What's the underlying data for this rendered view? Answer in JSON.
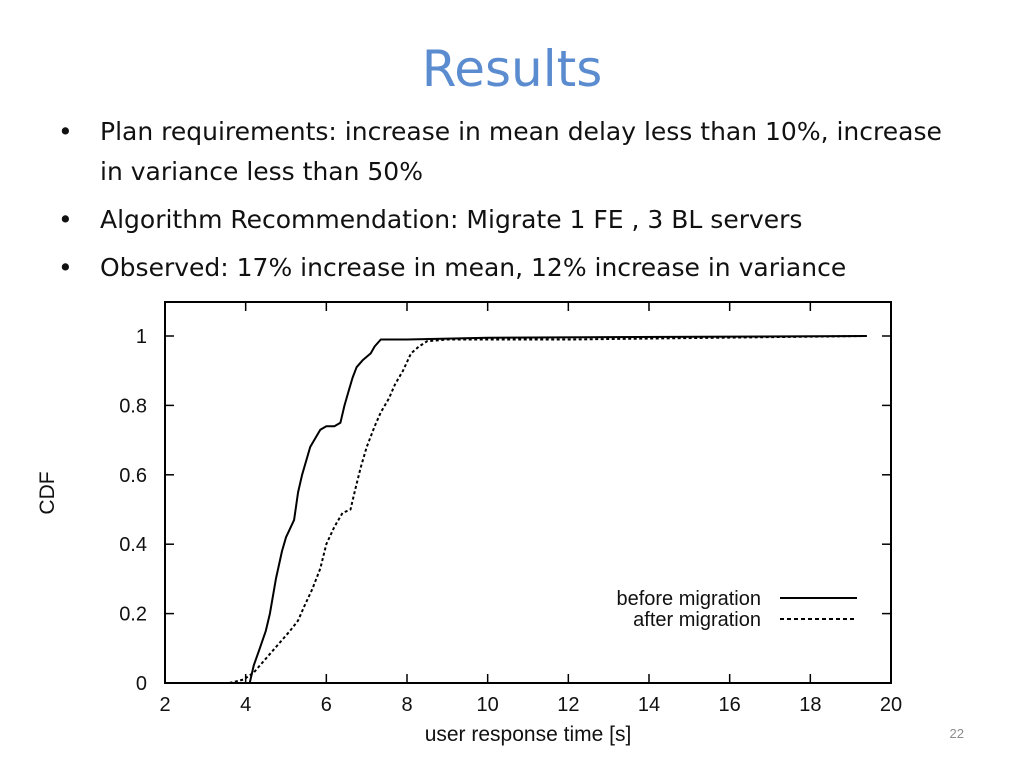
{
  "slide": {
    "title": "Results",
    "bullets": [
      "Plan requirements: increase in mean delay less than 10%, increase in variance less than 50%",
      "Algorithm Recommendation: Migrate 1 FE , 3 BL servers",
      "Observed: 17% increase in mean, 12% increase in variance"
    ],
    "slide_number": "22"
  },
  "chart_data": {
    "type": "line",
    "xlabel": "user response time [s]",
    "ylabel": "CDF",
    "xlim": [
      2,
      20
    ],
    "ylim": [
      0,
      1.05
    ],
    "x_ticks": [
      "2",
      "4",
      "6",
      "8",
      "10",
      "12",
      "14",
      "16",
      "18",
      "20"
    ],
    "y_ticks": [
      "0",
      "0.2",
      "0.4",
      "0.6",
      "0.8",
      "1"
    ],
    "legend_position": "bottom-right",
    "grid": false,
    "series": [
      {
        "name": "before migration",
        "style": "solid",
        "color": "#000000",
        "points": [
          [
            4.1,
            0.0
          ],
          [
            4.2,
            0.05
          ],
          [
            4.35,
            0.1
          ],
          [
            4.5,
            0.15
          ],
          [
            4.6,
            0.2
          ],
          [
            4.75,
            0.3
          ],
          [
            4.9,
            0.38
          ],
          [
            5.0,
            0.42
          ],
          [
            5.2,
            0.47
          ],
          [
            5.3,
            0.55
          ],
          [
            5.4,
            0.6
          ],
          [
            5.6,
            0.68
          ],
          [
            5.7,
            0.7
          ],
          [
            5.85,
            0.73
          ],
          [
            6.0,
            0.74
          ],
          [
            6.2,
            0.74
          ],
          [
            6.35,
            0.75
          ],
          [
            6.45,
            0.8
          ],
          [
            6.55,
            0.84
          ],
          [
            6.65,
            0.88
          ],
          [
            6.75,
            0.91
          ],
          [
            6.9,
            0.93
          ],
          [
            7.1,
            0.95
          ],
          [
            7.2,
            0.97
          ],
          [
            7.35,
            0.99
          ],
          [
            8.0,
            0.99
          ],
          [
            10.0,
            0.995
          ],
          [
            19.4,
            1.0
          ]
        ]
      },
      {
        "name": "after migration",
        "style": "dashed",
        "color": "#000000",
        "points": [
          [
            3.6,
            0.0
          ],
          [
            3.95,
            0.01
          ],
          [
            4.2,
            0.03
          ],
          [
            4.5,
            0.07
          ],
          [
            4.8,
            0.11
          ],
          [
            5.1,
            0.15
          ],
          [
            5.3,
            0.18
          ],
          [
            5.45,
            0.22
          ],
          [
            5.65,
            0.27
          ],
          [
            5.85,
            0.33
          ],
          [
            6.0,
            0.4
          ],
          [
            6.2,
            0.45
          ],
          [
            6.4,
            0.49
          ],
          [
            6.6,
            0.5
          ],
          [
            6.7,
            0.55
          ],
          [
            6.85,
            0.62
          ],
          [
            7.0,
            0.68
          ],
          [
            7.2,
            0.74
          ],
          [
            7.35,
            0.78
          ],
          [
            7.55,
            0.82
          ],
          [
            7.7,
            0.86
          ],
          [
            7.9,
            0.9
          ],
          [
            8.1,
            0.95
          ],
          [
            8.3,
            0.97
          ],
          [
            8.5,
            0.985
          ],
          [
            9.0,
            0.99
          ],
          [
            12.0,
            0.99
          ],
          [
            19.4,
            1.0
          ]
        ]
      }
    ]
  }
}
